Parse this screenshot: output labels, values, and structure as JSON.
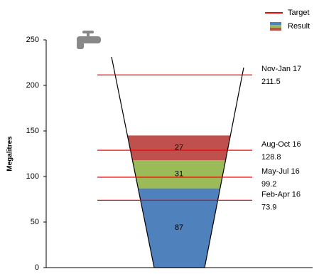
{
  "chart_data": {
    "type": "funnel",
    "ylabel": "Megalitres",
    "ylim": [
      0,
      250
    ],
    "yticks": [
      0,
      50,
      100,
      150,
      200,
      250
    ],
    "series": [
      {
        "name": "Result",
        "values": [
          87,
          31,
          27
        ],
        "colors": [
          "#4f81bd",
          "#9bbb59",
          "#c0504d"
        ]
      },
      {
        "name": "Target",
        "color": "#ff0000",
        "values": [
          73.9,
          99.2,
          128.8,
          211.5
        ],
        "labels": [
          "Feb-Apr 16",
          "May-Jul 16",
          "Aug-Oct 16",
          "Nov-Jan 17"
        ]
      }
    ]
  }
}
